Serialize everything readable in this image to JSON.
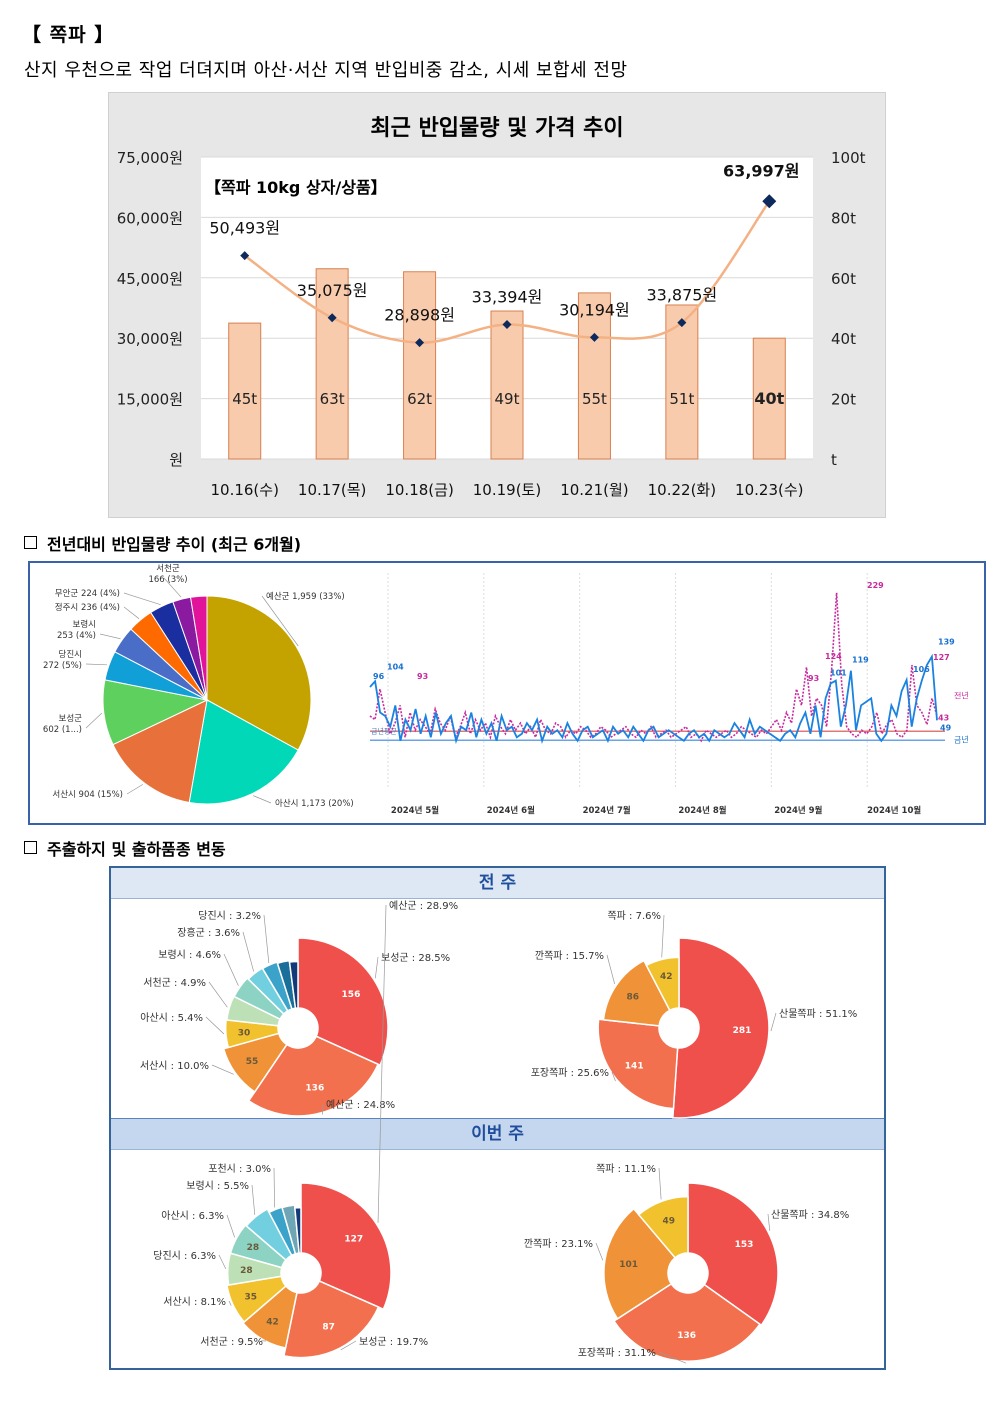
{
  "header": {
    "title": "【 쪽파 】",
    "subtitle": "산지 우천으로 작업 더뎌지며 아산·서산 지역 반입비중 감소, 시세 보합세 전망"
  },
  "price_chart": {
    "title": "최근 반입물량 및 가격 추이",
    "legend": "【쪽파 10kg 상자/상품】",
    "chart_data": {
      "type": "bar",
      "categories": [
        "10.16(수)",
        "10.17(목)",
        "10.18(금)",
        "10.19(토)",
        "10.21(월)",
        "10.22(화)",
        "10.23(수)"
      ],
      "series": [
        {
          "values": [
            45,
            63,
            62,
            49,
            55,
            51,
            40
          ],
          "labels": [
            "45t",
            "63t",
            "62t",
            "49t",
            "55t",
            "51t",
            "40t"
          ],
          "color": "#f8cbad"
        },
        {
          "values": [
            50493,
            35075,
            28898,
            33394,
            30194,
            33875,
            63997
          ],
          "labels": [
            "50,493원",
            "35,075원",
            "28,898원",
            "33,394원",
            "30,194원",
            "33,875원",
            "63,997원"
          ],
          "color": "#f4b183"
        }
      ],
      "left_ticks": [
        "원",
        "15,000원",
        "30,000원",
        "45,000원",
        "60,000원",
        "75,000원"
      ],
      "right_ticks": [
        "t",
        "20t",
        "40t",
        "60t",
        "80t",
        "100t"
      ],
      "y_price_lim": [
        0,
        75000
      ],
      "y_vol_lim": [
        0,
        100
      ]
    }
  },
  "yoy": {
    "heading": "전년대비 반입물량 추이 (최근 6개월)",
    "pie": {
      "type": "pie",
      "slices": [
        {
          "label": "예산군 1,959 (33%)",
          "value": 1959,
          "color": "#c4a300"
        },
        {
          "label": "아산시 1,173 (20%)",
          "value": 1173,
          "color": "#00d8b8"
        },
        {
          "label": "서산시 904 (15%)",
          "value": 904,
          "color": "#e8703a"
        },
        {
          "label": "보성군 602 (1...)",
          "value": 602,
          "color": "#5ed05e"
        },
        {
          "label": "당진시 272 (5%)",
          "value": 272,
          "color": "#119fd8"
        },
        {
          "label": "보령시 253 (4%)",
          "value": 253,
          "color": "#4a6ec8"
        },
        {
          "label": "정주시 236 (4%)",
          "value": 236,
          "color": "#ff6a00"
        },
        {
          "label": "무안군 224 (4%)",
          "value": 224,
          "color": "#1a2ea0"
        },
        {
          "label": "서천군 166 (3%)",
          "value": 166,
          "color": "#8a1aa0"
        },
        {
          "label": "",
          "value": 150,
          "color": "#e0139a"
        }
      ]
    },
    "line": {
      "months": [
        "2024년 5월",
        "2024년 6월",
        "2024년 7월",
        "2024년 8월",
        "2024년 9월",
        "2024년 10월"
      ],
      "legend_prev": "전년",
      "legend_curr": "금년",
      "left_marker": "금년평균",
      "labels": [
        "96",
        "104",
        "93",
        "124",
        "93",
        "101",
        "119",
        "229",
        "106",
        "127",
        "139",
        "43",
        "49"
      ],
      "curr_values": [
        96,
        104,
        60,
        55,
        40,
        70,
        20,
        50,
        35,
        65,
        30,
        55,
        25,
        60,
        30,
        45,
        55,
        20,
        40,
        35,
        60,
        25,
        50,
        30,
        45,
        20,
        55,
        35,
        40,
        25,
        30,
        45,
        35,
        50,
        20,
        40,
        30,
        35,
        25,
        45,
        30,
        20,
        35,
        40,
        25,
        30,
        35,
        20,
        40,
        30,
        35,
        25,
        40,
        30,
        20,
        35,
        40,
        25,
        30,
        35,
        30,
        25,
        20,
        30,
        35,
        25,
        30,
        20,
        35,
        30,
        25,
        30,
        45,
        35,
        25,
        50,
        30,
        40,
        35,
        30,
        25,
        20,
        30,
        35,
        25,
        45,
        60,
        30,
        70,
        25,
        80,
        101,
        105,
        40,
        70,
        119,
        35,
        70,
        75,
        80,
        30,
        20,
        30,
        70,
        55,
        90,
        106,
        40,
        80,
        105,
        127,
        139,
        49
      ],
      "prev_values": [
        55,
        50,
        93,
        60,
        30,
        45,
        70,
        25,
        60,
        35,
        50,
        40,
        30,
        65,
        45,
        35,
        55,
        25,
        40,
        60,
        30,
        50,
        35,
        45,
        25,
        55,
        40,
        30,
        50,
        35,
        45,
        30,
        40,
        25,
        50,
        35,
        30,
        45,
        40,
        25,
        35,
        30,
        40,
        35,
        25,
        30,
        40,
        35,
        25,
        30,
        35,
        40,
        30,
        25,
        35,
        30,
        40,
        25,
        30,
        35,
        25,
        30,
        35,
        40,
        25,
        30,
        20,
        35,
        30,
        25,
        30,
        35,
        25,
        30,
        40,
        35,
        30,
        25,
        35,
        30,
        40,
        50,
        35,
        60,
        45,
        93,
        70,
        124,
        55,
        80,
        70,
        40,
        120,
        229,
        100,
        40,
        30,
        25,
        35,
        30,
        40,
        60,
        30,
        43,
        50,
        30,
        25,
        35,
        127,
        70,
        60,
        43,
        80,
        55
      ]
    }
  },
  "shipping": {
    "heading": "주출하지 및 출하품종 변동",
    "prev_week": {
      "label": "전 주",
      "region": {
        "slices": [
          {
            "label": "보성군 : 28.5%",
            "value": 156,
            "shown": "156",
            "color": "#f0504c"
          },
          {
            "label": "예산군 : 24.8%",
            "value": 136,
            "shown": "136",
            "color": "#f2704e"
          },
          {
            "label": "서산시 : 10.0%",
            "value": 55,
            "shown": "55",
            "color": "#f09238"
          },
          {
            "label": "아산시 : 5.4%",
            "value": 30,
            "shown": "30",
            "color": "#f2c12e"
          },
          {
            "label": "서천군 : 4.9%",
            "value": 27,
            "shown": "",
            "color": "#bde0b6"
          },
          {
            "label": "보령시 : 4.6%",
            "value": 25,
            "shown": "",
            "color": "#8dd3c4"
          },
          {
            "label": "장흥군 : 3.6%",
            "value": 20,
            "shown": "",
            "color": "#72cfe0"
          },
          {
            "label": "당진시 : 3.2%",
            "value": 18,
            "shown": "",
            "color": "#3ba3c9"
          },
          {
            "label": "",
            "value": 14,
            "shown": "",
            "color": "#1a6e9a"
          },
          {
            "label": "",
            "value": 10,
            "shown": "",
            "color": "#133a78"
          }
        ]
      },
      "variety": {
        "slices": [
          {
            "label": "산물쪽파 : 51.1%",
            "value": 281,
            "shown": "281",
            "color": "#f0504c"
          },
          {
            "label": "포장쪽파 : 25.6%",
            "value": 141,
            "shown": "141",
            "color": "#f2704e"
          },
          {
            "label": "깐쪽파 : 15.7%",
            "value": 86,
            "shown": "86",
            "color": "#f09238"
          },
          {
            "label": "쪽파 : 7.6%",
            "value": 42,
            "shown": "42",
            "color": "#f2c12e"
          }
        ]
      }
    },
    "this_week": {
      "label": "이번 주",
      "region": {
        "slices": [
          {
            "label": "예산군 : 28.9%",
            "value": 127,
            "shown": "127",
            "color": "#f0504c"
          },
          {
            "label": "보성군 : 19.7%",
            "value": 87,
            "shown": "87",
            "color": "#f2704e"
          },
          {
            "label": "서천군 : 9.5%",
            "value": 42,
            "shown": "42",
            "color": "#f09238"
          },
          {
            "label": "서산시 : 8.1%",
            "value": 35,
            "shown": "35",
            "color": "#f2c12e"
          },
          {
            "label": "당진시 : 6.3%",
            "value": 28,
            "shown": "28",
            "color": "#bde0b6"
          },
          {
            "label": "아산시 : 6.3%",
            "value": 28,
            "shown": "28",
            "color": "#8dd3c4"
          },
          {
            "label": "보령시 : 5.5%",
            "value": 24,
            "shown": "",
            "color": "#72cfe0"
          },
          {
            "label": "포천시 : 3.0%",
            "value": 13,
            "shown": "",
            "color": "#3ba3c9"
          },
          {
            "label": "",
            "value": 12,
            "shown": "",
            "color": "#6fa6b5"
          },
          {
            "label": "",
            "value": 6,
            "shown": "",
            "color": "#133a78"
          }
        ]
      },
      "variety": {
        "slices": [
          {
            "label": "산물쪽파 : 34.8%",
            "value": 153,
            "shown": "153",
            "color": "#f0504c"
          },
          {
            "label": "포장쪽파 : 31.1%",
            "value": 136,
            "shown": "136",
            "color": "#f2704e"
          },
          {
            "label": "깐쪽파 : 23.1%",
            "value": 101,
            "shown": "101",
            "color": "#f09238"
          },
          {
            "label": "쪽파 : 11.1%",
            "value": 49,
            "shown": "49",
            "color": "#f2c12e"
          }
        ]
      }
    }
  }
}
